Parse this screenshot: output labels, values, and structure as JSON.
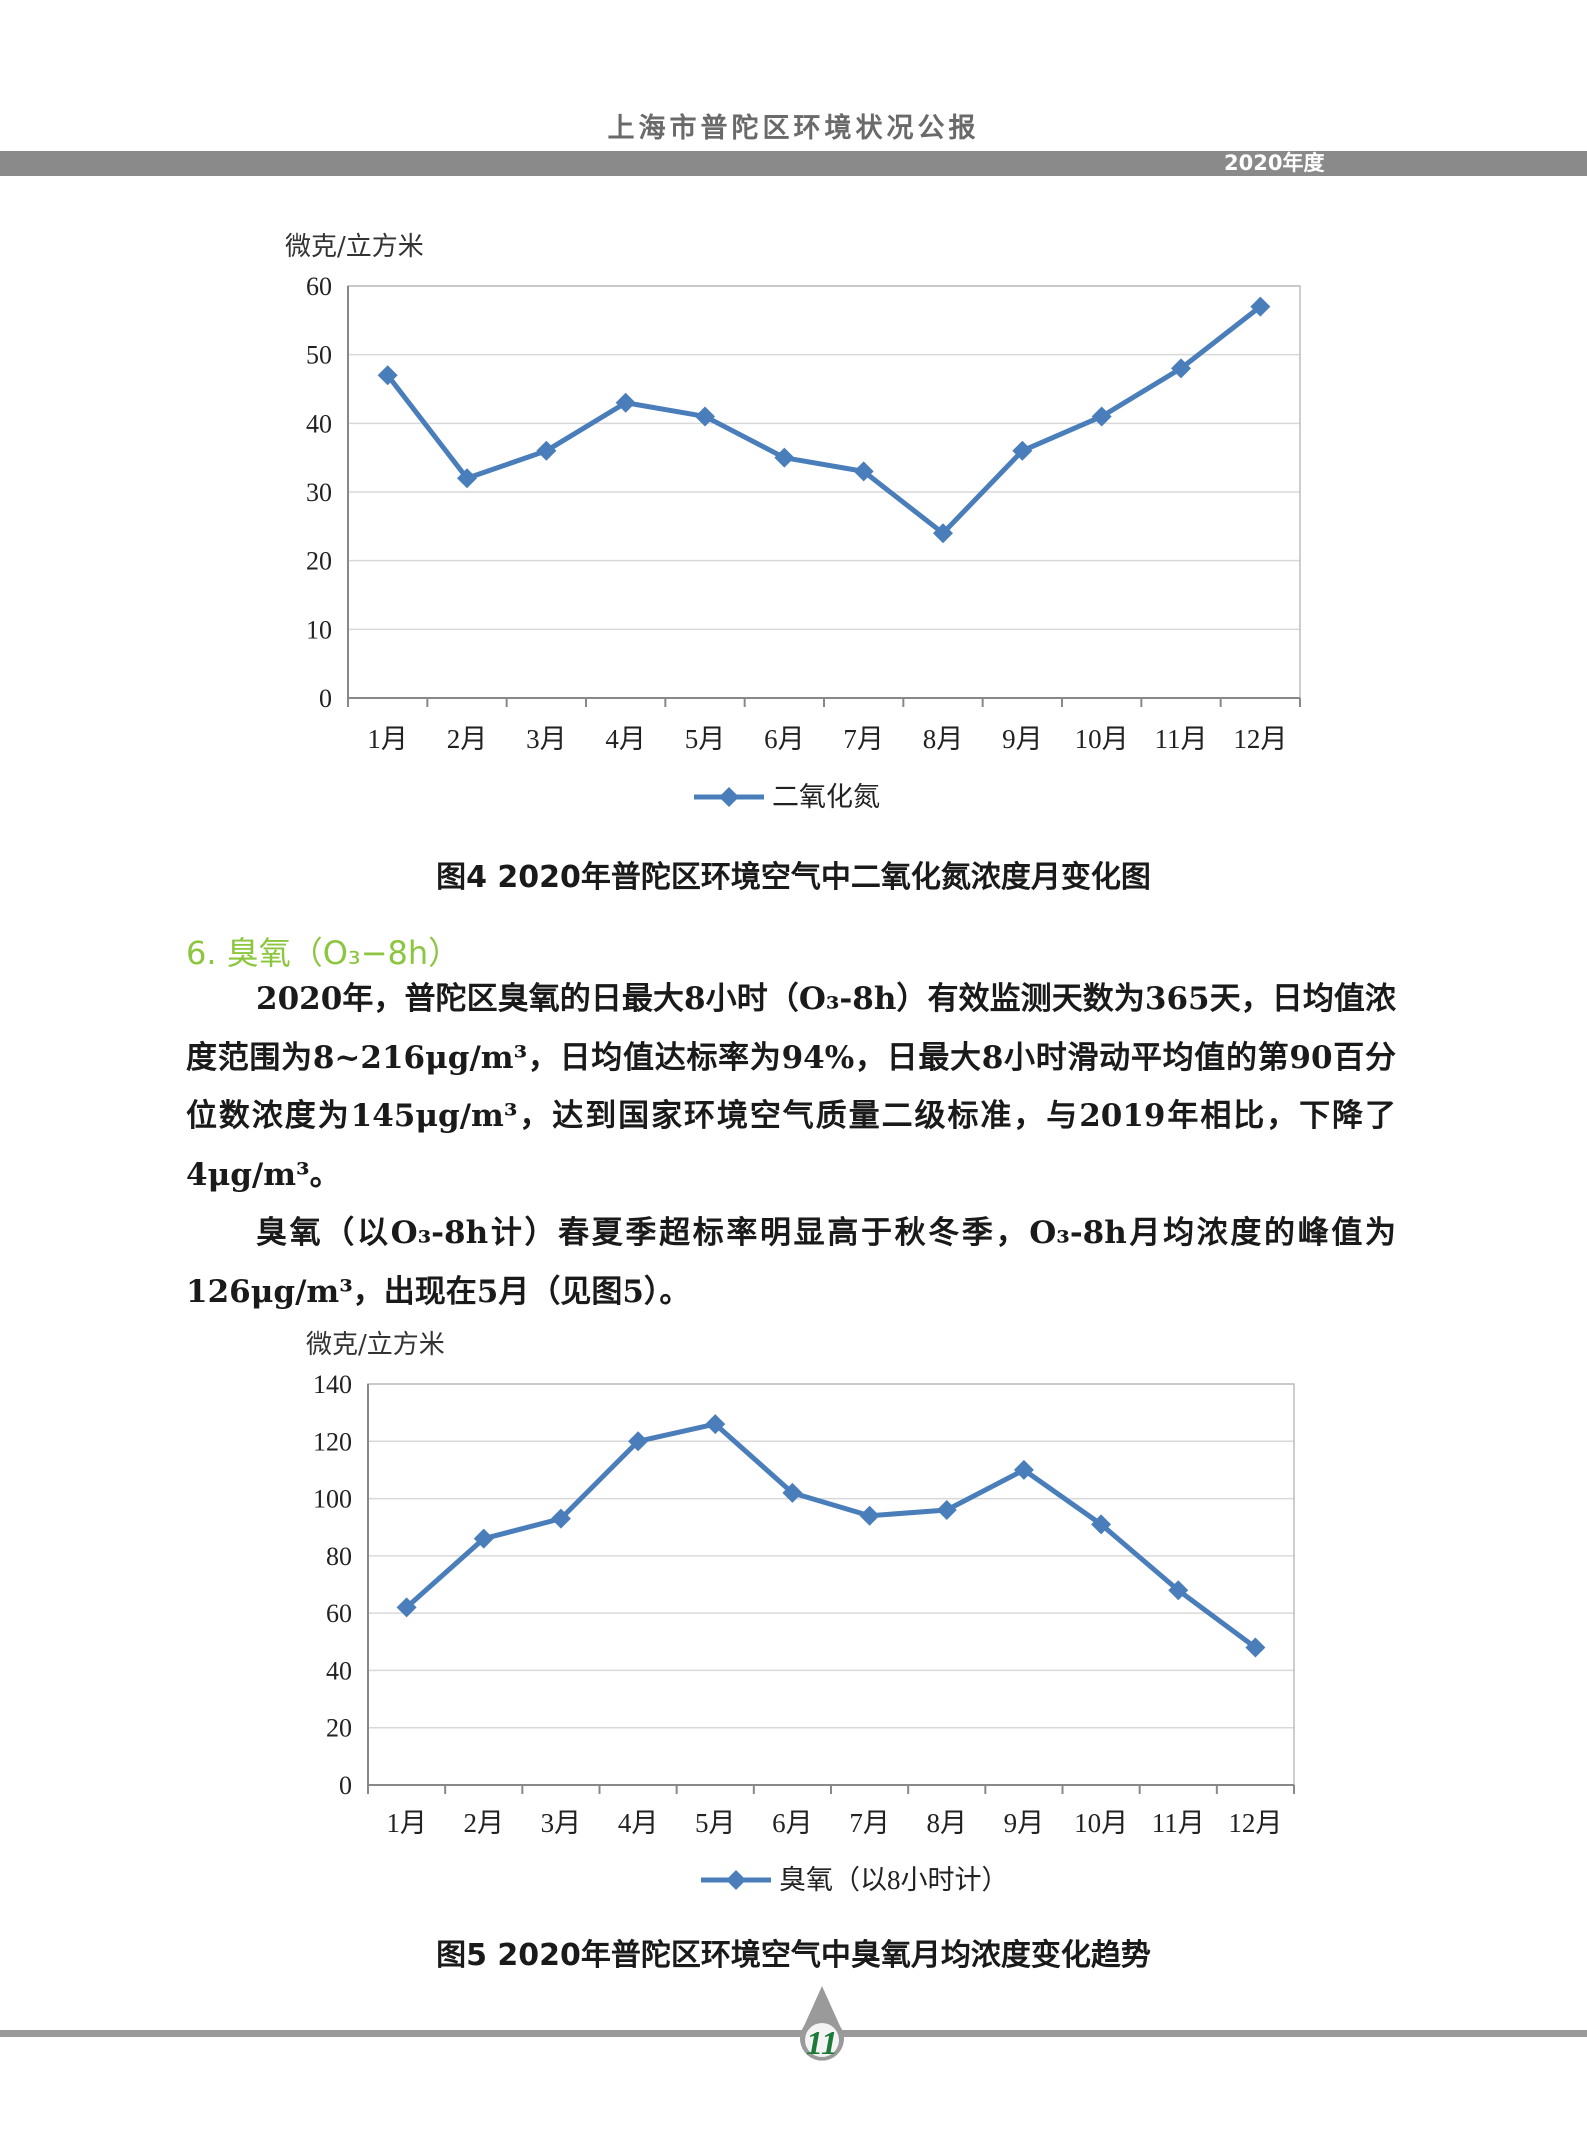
{
  "header": {
    "title": "上海市普陀区环境状况公报",
    "year": "2020年度"
  },
  "chart_data": [
    {
      "type": "line",
      "title": "图4 2020年普陀区环境空气中二氧化氮浓度月变化图",
      "ylabel": "微克/立方米",
      "xlabel": "",
      "categories": [
        "1月",
        "2月",
        "3月",
        "4月",
        "5月",
        "6月",
        "7月",
        "8月",
        "9月",
        "10月",
        "11月",
        "12月"
      ],
      "series": [
        {
          "name": "二氧化氮",
          "values": [
            47,
            32,
            36,
            43,
            41,
            35,
            33,
            24,
            36,
            41,
            48,
            57
          ],
          "color": "#4a7ebb"
        }
      ],
      "ylim": [
        0,
        60
      ],
      "yticks": [
        0,
        10,
        20,
        30,
        40,
        50,
        60
      ],
      "grid": true,
      "legend": "bottom"
    },
    {
      "type": "line",
      "title": "图5 2020年普陀区环境空气中臭氧月均浓度变化趋势",
      "ylabel": "微克/立方米",
      "xlabel": "",
      "categories": [
        "1月",
        "2月",
        "3月",
        "4月",
        "5月",
        "6月",
        "7月",
        "8月",
        "9月",
        "10月",
        "11月",
        "12月"
      ],
      "series": [
        {
          "name": "臭氧（以8小时计）",
          "values": [
            62,
            86,
            93,
            120,
            126,
            102,
            94,
            96,
            110,
            91,
            68,
            48
          ],
          "color": "#4a7ebb"
        }
      ],
      "ylim": [
        0,
        140
      ],
      "yticks": [
        0,
        20,
        40,
        60,
        80,
        100,
        120,
        140
      ],
      "grid": true,
      "legend": "bottom"
    }
  ],
  "section": {
    "heading": "6. 臭氧（O₃−8h）",
    "paragraphs": [
      "2020年，普陀区臭氧的日最大8小时（O₃-8h）有效监测天数为365天，日均值浓度范围为8~216μg/m³，日均值达标率为94%，日最大8小时滑动平均值的第90百分位数浓度为145μg/m³，达到国家环境空气质量二级标准，与2019年相比，下降了4μg/m³。",
      "臭氧（以O₃-8h计）春夏季超标率明显高于秋冬季，O₃-8h月均浓度的峰值为126μg/m³，出现在5月（见图5）。"
    ]
  },
  "footer": {
    "page_number": "11",
    "accent": "#1e7a3a"
  }
}
